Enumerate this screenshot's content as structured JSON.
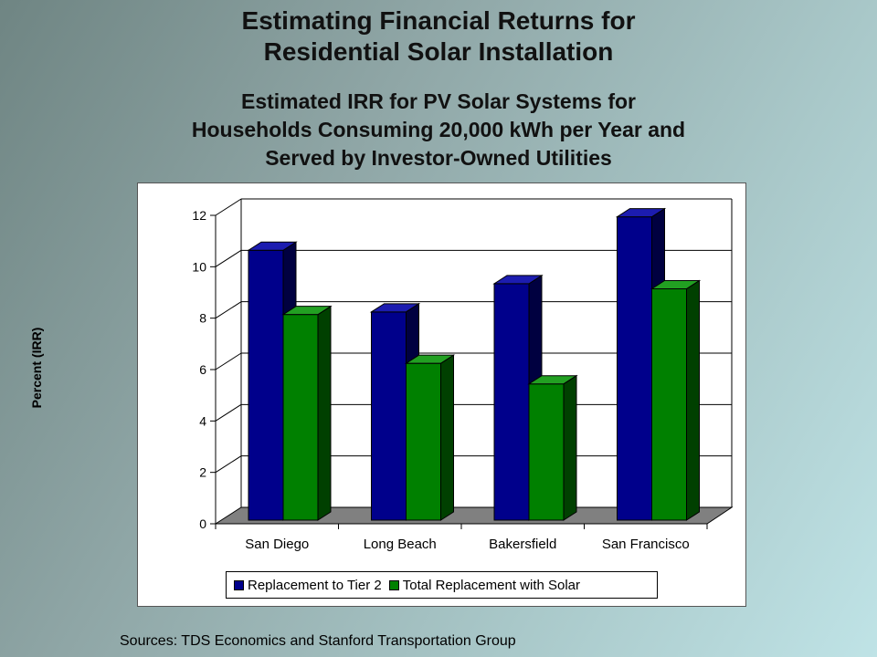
{
  "title_line1": "Estimating Financial Returns for",
  "title_line2": "Residential Solar Installation",
  "subtitle_line1": "Estimated IRR for PV Solar Systems for",
  "subtitle_line2": "Households Consuming 20,000 kWh per Year and",
  "subtitle_line3": "Served by Investor-Owned Utilities",
  "source": "Sources: TDS Economics and Stanford Transportation Group",
  "colors": {
    "series1": "#00008b",
    "series2": "#008000"
  },
  "chart_data": {
    "type": "bar",
    "categories": [
      "San Diego",
      "Long Beach",
      "Bakersfield",
      "San Francisco"
    ],
    "series": [
      {
        "name": "Replacement to Tier 2",
        "values": [
          10.5,
          8.1,
          9.2,
          11.8
        ]
      },
      {
        "name": "Total Replacement with Solar",
        "values": [
          8.0,
          6.1,
          5.3,
          9.0
        ]
      }
    ],
    "ylabel": "Percent (IRR)",
    "ylim": [
      0,
      12
    ],
    "yticks": [
      "0",
      "2",
      "4",
      "6",
      "8",
      "10",
      "12"
    ],
    "grid": true,
    "legend": "bottom",
    "style": "3d"
  }
}
